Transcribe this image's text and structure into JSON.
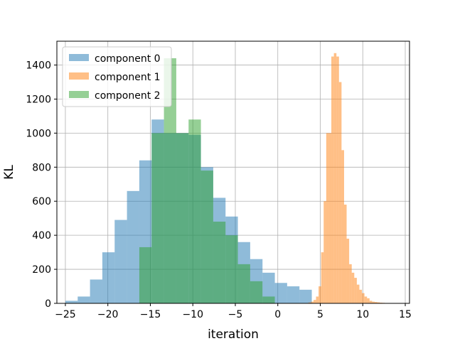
{
  "chart_data": {
    "type": "bar",
    "title": "",
    "xlabel": "iteration",
    "ylabel": "KL",
    "xlim": [
      -26,
      15.5
    ],
    "ylim": [
      0,
      1540
    ],
    "xticks": [
      -25,
      -20,
      -15,
      -10,
      -5,
      0,
      5,
      10,
      15
    ],
    "yticks": [
      0,
      200,
      400,
      600,
      800,
      1000,
      1200,
      1400
    ],
    "grid": true,
    "legend_position": "top-left",
    "series": [
      {
        "name": "component 0",
        "color": "#1f77b4",
        "bin_width": 1.45,
        "bins_start": [
          -25.0,
          -23.55,
          -22.1,
          -20.65,
          -19.2,
          -17.75,
          -16.3,
          -14.85,
          -13.4,
          -11.95,
          -10.5,
          -9.05,
          -7.6,
          -6.15,
          -4.7,
          -3.25,
          -1.8,
          -0.35,
          1.1,
          2.55
        ],
        "counts": [
          15,
          40,
          140,
          300,
          490,
          660,
          840,
          1080,
          1000,
          1000,
          990,
          800,
          620,
          510,
          360,
          260,
          180,
          120,
          100,
          80
        ]
      },
      {
        "name": "component 1",
        "color": "#ff7f0e",
        "bin_width": 0.3,
        "bins_start": [
          3.6,
          3.9,
          4.2,
          4.5,
          4.8,
          5.1,
          5.4,
          5.7,
          6.0,
          6.3,
          6.6,
          6.9,
          7.2,
          7.5,
          7.8,
          8.1,
          8.4,
          8.7,
          9.0,
          9.3,
          9.6,
          9.9,
          10.2,
          10.5,
          10.8,
          11.1,
          11.4,
          11.7,
          12.0,
          12.3,
          12.6,
          13.0,
          13.4
        ],
        "counts": [
          5,
          10,
          20,
          40,
          100,
          300,
          600,
          1000,
          1000,
          1450,
          1470,
          1450,
          1300,
          900,
          580,
          380,
          230,
          180,
          150,
          110,
          80,
          60,
          40,
          30,
          15,
          10,
          8,
          6,
          4,
          3,
          2,
          2,
          1
        ]
      },
      {
        "name": "component 2",
        "color": "#2ca02c",
        "bin_width": 1.45,
        "bins_start": [
          -16.3,
          -14.85,
          -13.4,
          -11.95,
          -10.5,
          -9.05,
          -7.6,
          -6.15,
          -4.7,
          -3.25,
          -1.8
        ],
        "counts": [
          330,
          1000,
          1440,
          1000,
          1080,
          780,
          480,
          400,
          230,
          130,
          40
        ]
      }
    ]
  }
}
